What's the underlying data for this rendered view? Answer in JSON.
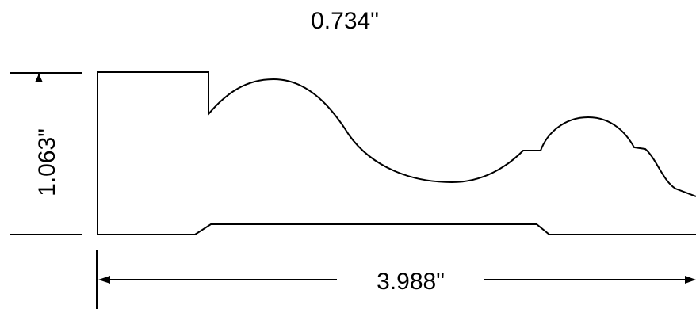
{
  "drawing": {
    "profile_name": "",
    "dimensions": {
      "top_label": "0.734\"",
      "height_label": "1.063\"",
      "width_label": "3.988\""
    },
    "line_color": "#000000",
    "background_color": "#ffffff"
  }
}
